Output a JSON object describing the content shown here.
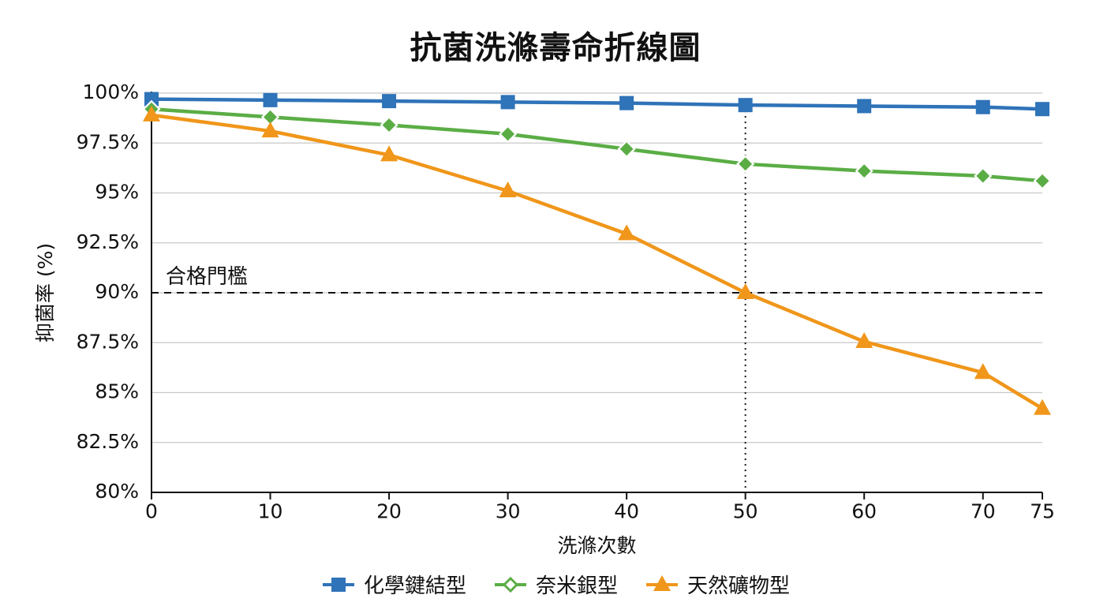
{
  "chart_data": {
    "type": "line",
    "title": "抗菌洗滌壽命折線圖",
    "xlabel": "洗滌次數",
    "ylabel": "抑菌率 (%)",
    "x": [
      0,
      10,
      20,
      30,
      40,
      50,
      60,
      70,
      75
    ],
    "x_ticks": [
      "0",
      "10",
      "20",
      "30",
      "40",
      "50",
      "60",
      "70",
      "75"
    ],
    "y_ticks": [
      "80%",
      "82.5%",
      "85%",
      "87.5%",
      "90%",
      "92.5%",
      "95%",
      "97.5%",
      "100%"
    ],
    "xlim": [
      0,
      75
    ],
    "ylim": [
      80,
      100
    ],
    "grid": true,
    "legend_position": "bottom",
    "threshold": {
      "value": 90,
      "label": "合格門檻"
    },
    "marker_line_x": 50,
    "series": [
      {
        "name": "化學鍵結型",
        "color": "#2f73b8",
        "marker": "square",
        "values": [
          99.7,
          99.65,
          99.6,
          99.55,
          99.5,
          99.4,
          99.35,
          99.3,
          99.2
        ]
      },
      {
        "name": "奈米銀型",
        "color": "#5aad45",
        "marker": "diamond",
        "values": [
          99.2,
          98.8,
          98.4,
          97.95,
          97.2,
          96.45,
          96.1,
          95.85,
          95.6
        ]
      },
      {
        "name": "天然礦物型",
        "color": "#f0961a",
        "marker": "triangle",
        "values": [
          98.9,
          98.1,
          96.9,
          95.1,
          92.95,
          90.0,
          87.55,
          86.0,
          84.2
        ]
      }
    ]
  }
}
